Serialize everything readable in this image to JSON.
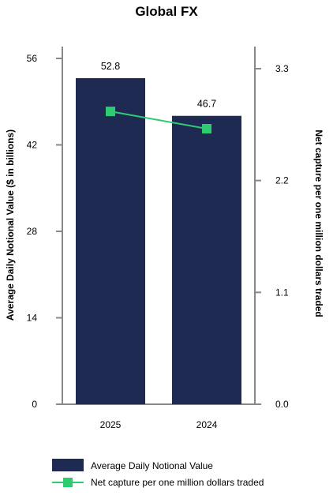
{
  "chart_data": {
    "type": "bar",
    "title": "Global FX",
    "categories": [
      "2025",
      "2024"
    ],
    "series": [
      {
        "name": "Average Daily Notional Value",
        "type": "bar",
        "axis": "left",
        "values": [
          52.8,
          46.7
        ],
        "data_labels": [
          "52.8",
          "46.7"
        ],
        "color": "#1f2a52"
      },
      {
        "name": "Net capture per one million dollars traded",
        "type": "line",
        "axis": "right",
        "values": [
          2.88,
          2.71
        ],
        "color": "#2ecc71"
      }
    ],
    "ylabel_left": "Average Daily Notional Value ($ in billions)",
    "ylabel_right": "Net capture per one million dollars traded",
    "ylim_left": [
      0,
      56
    ],
    "ylim_right": [
      0,
      3.3
    ],
    "yticks_left": [
      "0",
      "14",
      "28",
      "42",
      "56"
    ],
    "yticks_right": [
      "0.0",
      "1.1",
      "2.2",
      "3.3"
    ],
    "grid": false,
    "legend_position": "bottom"
  }
}
